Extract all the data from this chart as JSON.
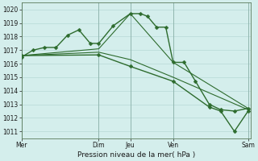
{
  "title": "",
  "xlabel": "Pression niveau de la mer( hPa )",
  "bg_color": "#d4eeec",
  "grid_color": "#b0d4d0",
  "line_color": "#2d6b2d",
  "vline_color": "#8ab0a8",
  "ylim": [
    1010.5,
    1020.5
  ],
  "yticks": [
    1011,
    1012,
    1013,
    1014,
    1015,
    1016,
    1017,
    1018,
    1019,
    1020
  ],
  "xlim": [
    0,
    1.0
  ],
  "xtick_positions": [
    0.0,
    0.337,
    0.475,
    0.662,
    0.99
  ],
  "xtick_labels": [
    "Mer",
    "Dim",
    "Jeu",
    "Ven",
    "Sam"
  ],
  "vline_positions": [
    0.0,
    0.337,
    0.475,
    0.662,
    0.99
  ],
  "series": [
    {
      "x": [
        0.0,
        0.05,
        0.1,
        0.15,
        0.2,
        0.25,
        0.3,
        0.337,
        0.4,
        0.475,
        0.52,
        0.55,
        0.59,
        0.63,
        0.662,
        0.71,
        0.76,
        0.82,
        0.87,
        0.93,
        0.99
      ],
      "y": [
        1016.5,
        1017.0,
        1017.2,
        1017.2,
        1018.1,
        1018.5,
        1017.5,
        1017.5,
        1018.8,
        1019.7,
        1019.7,
        1019.5,
        1018.7,
        1018.7,
        1016.1,
        1016.1,
        1014.7,
        1013.0,
        1012.6,
        1012.5,
        1012.7
      ],
      "marker": true,
      "linewidth": 1.0
    },
    {
      "x": [
        0.0,
        0.337,
        0.475,
        0.662,
        0.99
      ],
      "y": [
        1016.6,
        1017.1,
        1019.7,
        1016.1,
        1012.7
      ],
      "marker": false,
      "linewidth": 0.8
    },
    {
      "x": [
        0.0,
        0.337,
        0.475,
        0.662,
        0.99
      ],
      "y": [
        1016.6,
        1016.85,
        1016.3,
        1015.0,
        1012.6
      ],
      "marker": false,
      "linewidth": 0.8
    },
    {
      "x": [
        0.0,
        0.337,
        0.475,
        0.662,
        0.82,
        0.87,
        0.93,
        0.99
      ],
      "y": [
        1016.6,
        1016.65,
        1015.8,
        1014.7,
        1012.8,
        1012.5,
        1011.0,
        1012.5
      ],
      "marker": true,
      "linewidth": 1.0
    }
  ]
}
